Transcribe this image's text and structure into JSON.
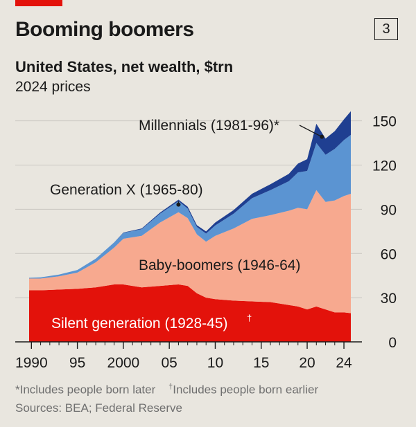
{
  "header": {
    "title": "Booming boomers",
    "chart_number": "3",
    "subtitle": "United States, net wealth, $trn",
    "subtitle2": "2024 prices"
  },
  "footer": {
    "note1_text": "Includes people born later",
    "note1_mark": "*",
    "note2_text": "Includes people born earlier",
    "note2_mark": "†",
    "source": "Sources: BEA; Federal Reserve"
  },
  "colors": {
    "silent": "#e3120b",
    "boomers": "#f7a98f",
    "genx": "#5b94d2",
    "millennials": "#1f3f91",
    "grid": "#c9c6c0"
  },
  "chart_data": {
    "type": "area",
    "stacked": true,
    "title": "Booming boomers",
    "subtitle": "United States, net wealth, $trn",
    "ylim": [
      0,
      155
    ],
    "yticks": [
      0,
      30,
      60,
      90,
      120,
      150
    ],
    "ytick_labels": [
      "0",
      "30",
      "60",
      "90",
      "120",
      "150"
    ],
    "xlim": [
      1989.75,
      2024.75
    ],
    "xticks": [
      1990,
      1995,
      2000,
      2005,
      2010,
      2015,
      2020,
      2024
    ],
    "xtick_labels": [
      "1990",
      "95",
      "2000",
      "05",
      "10",
      "15",
      "20",
      "24"
    ],
    "x": [
      1989.75,
      1991,
      1993,
      1995,
      1997,
      1999,
      2000,
      2002,
      2004,
      2006,
      2007,
      2008,
      2009,
      2010,
      2012,
      2014,
      2016,
      2018,
      2019,
      2020,
      2021,
      2022,
      2023,
      2024,
      2024.75
    ],
    "series": [
      {
        "name": "Silent generation (1928-45)",
        "label_mark": "†",
        "values": [
          35,
          35,
          35.5,
          36,
          37,
          39,
          39,
          37,
          38,
          39,
          38,
          33,
          30,
          29,
          28,
          27.5,
          27,
          25,
          24,
          22,
          24,
          22,
          20,
          20,
          19.5
        ]
      },
      {
        "name": "Baby-boomers (1946-64)",
        "values": [
          8,
          8,
          9,
          11,
          17,
          25,
          31,
          35,
          43,
          49,
          46,
          40,
          38,
          43,
          49,
          56,
          59,
          64,
          67,
          68,
          79,
          73,
          76,
          79,
          81
        ]
      },
      {
        "name": "Generation X (1965-80)",
        "values": [
          0.5,
          0.8,
          1.2,
          1.8,
          2.5,
          3.5,
          4,
          4.5,
          6,
          7.5,
          6.5,
          5,
          5.5,
          7,
          10,
          14,
          17,
          20,
          24,
          26,
          32,
          32,
          35,
          38,
          40
        ]
      },
      {
        "name": "Millennials (1981-96)",
        "label_mark": "*",
        "values": [
          0,
          0,
          0,
          0,
          0,
          0,
          0.2,
          0.5,
          0.8,
          1,
          1.2,
          1.2,
          1.5,
          2,
          2.5,
          3,
          4,
          5,
          6,
          8,
          13,
          11,
          12,
          14,
          16
        ]
      }
    ],
    "annotations": [
      {
        "series": 3,
        "text": "Millennials (1981-96)",
        "mark": "*",
        "pointer_x": 2021.6
      },
      {
        "series": 2,
        "text": "Generation X (1965-80)",
        "pointer_x": 2006
      }
    ],
    "grid": "horizontal",
    "legend": "inline labels"
  }
}
